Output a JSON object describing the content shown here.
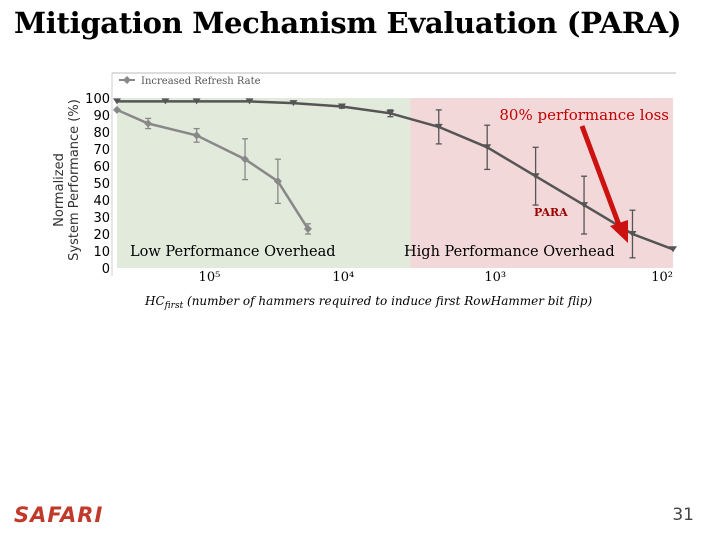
{
  "slide": {
    "title": "Mitigation Mechanism Evaluation (PARA)",
    "logo": "SAFARI",
    "page_number": "31"
  },
  "chart_data": {
    "type": "line",
    "xscale": "log",
    "xreversed": true,
    "xlim": [
      200000,
      70
    ],
    "ylim": [
      0,
      100
    ],
    "yticks": [
      0,
      10,
      20,
      30,
      40,
      50,
      60,
      70,
      80,
      90,
      100
    ],
    "xticks": [
      {
        "value": 100000,
        "label": "10⁵"
      },
      {
        "value": 10000,
        "label": "10⁴"
      },
      {
        "value": 1000,
        "label": "10³"
      },
      {
        "value": 100,
        "label": "10²"
      }
    ],
    "ylabel_line1": "Normalized",
    "ylabel_line2": "System Performance (%)",
    "xlabel_main": "HC",
    "xlabel_sub": "first",
    "xlabel_rest": " (number of hammers required to induce first RowHammer bit flip)",
    "legend": {
      "label": "Increased Refresh Rate",
      "position": "top-left"
    },
    "series": [
      {
        "name": "Increased Refresh Rate",
        "color": "#888888",
        "marker": "diamond",
        "points": [
          {
            "x": 200000,
            "y": 93,
            "err": 0
          },
          {
            "x": 128000,
            "y": 85,
            "err": 3
          },
          {
            "x": 64000,
            "y": 78,
            "err": 4
          },
          {
            "x": 32000,
            "y": 64,
            "err": 12
          },
          {
            "x": 20000,
            "y": 51,
            "err": 13
          },
          {
            "x": 13000,
            "y": 23,
            "err": 3
          }
        ]
      },
      {
        "name": "PARA",
        "color": "#555555",
        "marker": "triangle-down",
        "points": [
          {
            "x": 200000,
            "y": 98,
            "err": 0
          },
          {
            "x": 100000,
            "y": 98,
            "err": 0
          },
          {
            "x": 64000,
            "y": 98,
            "err": 0
          },
          {
            "x": 30000,
            "y": 98,
            "err": 0
          },
          {
            "x": 16000,
            "y": 97,
            "err": 0
          },
          {
            "x": 8000,
            "y": 95,
            "err": 1
          },
          {
            "x": 4000,
            "y": 91,
            "err": 2
          },
          {
            "x": 2000,
            "y": 83,
            "err": 10
          },
          {
            "x": 1000,
            "y": 71,
            "err": 13
          },
          {
            "x": 500,
            "y": 54,
            "err": 17
          },
          {
            "x": 250,
            "y": 37,
            "err": 17
          },
          {
            "x": 125,
            "y": 20,
            "err": 14
          },
          {
            "x": 70,
            "y": 11,
            "err": 0
          }
        ]
      }
    ],
    "regions": [
      {
        "from": 200000,
        "to": 3000,
        "label": "Low Performance Overhead",
        "color": "#e2eadc"
      },
      {
        "from": 3000,
        "to": 70,
        "label": "High Performance Overhead",
        "color": "#f3d8d9"
      }
    ],
    "annotations": {
      "loss_label": "80% performance loss",
      "para_label": "PARA",
      "arrow_color": "#cc1111"
    }
  }
}
